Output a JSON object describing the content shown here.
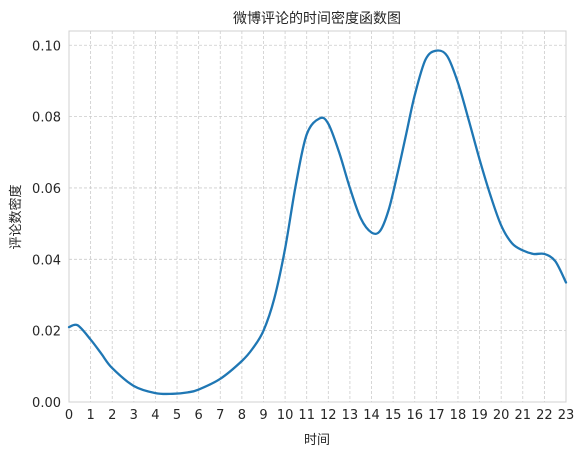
{
  "chart_data": {
    "type": "line",
    "title": "微博评论的时间密度函数图",
    "xlabel": "时间",
    "ylabel": "评论数密度",
    "xlim": [
      0,
      23
    ],
    "ylim": [
      0,
      0.104
    ],
    "xticks": [
      0,
      1,
      2,
      3,
      4,
      5,
      6,
      7,
      8,
      9,
      10,
      11,
      12,
      13,
      14,
      15,
      16,
      17,
      18,
      19,
      20,
      21,
      22,
      23
    ],
    "yticks": [
      0.0,
      0.02,
      0.04,
      0.06,
      0.08,
      0.1
    ],
    "ytick_labels": [
      "0.00",
      "0.02",
      "0.04",
      "0.06",
      "0.08",
      "0.10"
    ],
    "grid": true,
    "series": [
      {
        "color": "#1f77b4",
        "x": [
          0,
          0.4,
          1,
          1.5,
          2,
          3,
          4,
          4.8,
          5.5,
          6,
          7,
          8,
          8.5,
          9,
          9.5,
          10,
          10.5,
          11,
          11.6,
          12,
          12.5,
          13,
          13.5,
          14,
          14.4,
          14.8,
          15.2,
          15.6,
          16,
          16.5,
          17,
          17.5,
          18,
          18.5,
          19,
          19.5,
          20,
          20.5,
          21,
          21.5,
          22,
          22.5,
          23
        ],
        "y": [
          0.021,
          0.0215,
          0.0175,
          0.0135,
          0.0095,
          0.0045,
          0.0025,
          0.0023,
          0.0027,
          0.0035,
          0.0065,
          0.0115,
          0.015,
          0.02,
          0.029,
          0.043,
          0.061,
          0.075,
          0.0795,
          0.078,
          0.07,
          0.06,
          0.0515,
          0.0475,
          0.048,
          0.054,
          0.064,
          0.075,
          0.086,
          0.096,
          0.0985,
          0.097,
          0.0895,
          0.079,
          0.068,
          0.058,
          0.0495,
          0.0445,
          0.0425,
          0.0415,
          0.0415,
          0.0395,
          0.0335
        ]
      }
    ]
  }
}
